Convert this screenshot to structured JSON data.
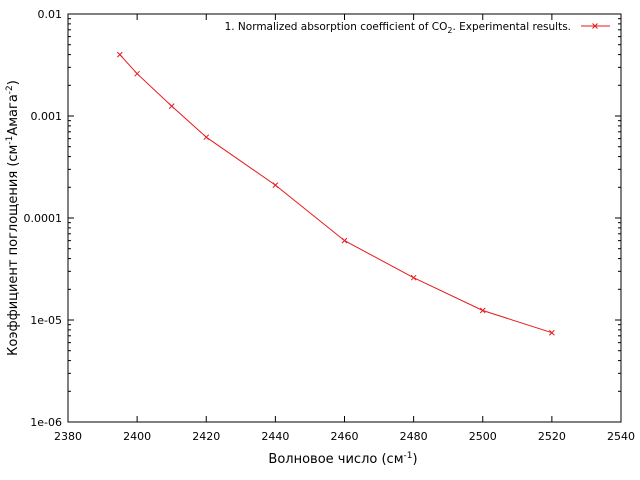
{
  "chart_data": {
    "type": "line",
    "xlabel": "Волновое число (см",
    "xlabel_sup": "-1",
    "xlabel_end": ")",
    "ylabel": "Коэффициент поглощения (см",
    "ylabel_sup1": "-1",
    "ylabel_mid": "Амага",
    "ylabel_sup2": "-2",
    "ylabel_end": ")",
    "xlim": [
      2380,
      2540
    ],
    "ylim": [
      1e-06,
      0.01
    ],
    "yscale": "log",
    "grid": false,
    "legend_position": "top-right",
    "x_ticks": [
      2380,
      2400,
      2420,
      2440,
      2460,
      2480,
      2500,
      2520,
      2540
    ],
    "x_tick_labels": [
      "2380",
      "2400",
      "2420",
      "2440",
      "2460",
      "2480",
      "2500",
      "2520",
      "2540"
    ],
    "y_ticks": [
      0.01,
      0.001,
      0.0001,
      1e-05,
      1e-06
    ],
    "y_tick_labels": [
      "0.01",
      "0.001",
      "0.0001",
      "1e-05",
      "1e-06"
    ],
    "series": [
      {
        "name": "1. Normalized absorption coefficient of CO",
        "name_sub": "2",
        "name_end": ". Experimental results.",
        "color": "#e8191c",
        "marker": "x",
        "x": [
          2395,
          2400,
          2410,
          2420,
          2440,
          2460,
          2480,
          2500,
          2520
        ],
        "y": [
          0.004,
          0.0026,
          0.00125,
          0.00062,
          0.00021,
          6e-05,
          2.6e-05,
          1.24e-05,
          7.5e-06
        ]
      }
    ]
  }
}
